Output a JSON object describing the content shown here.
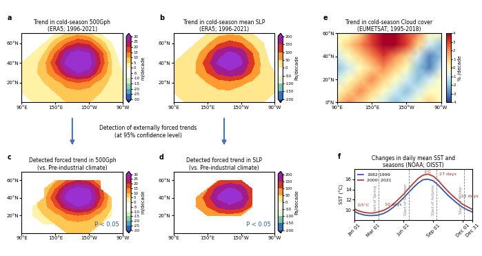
{
  "chart_data": [
    {
      "type": "contour",
      "label": "a",
      "title": "Trend in cold-season 500Gph\n(ERA5; 1996-2021)",
      "x": [
        90,
        110,
        130,
        150,
        170,
        190,
        210,
        230,
        250,
        270
      ],
      "y": [
        0,
        10,
        20,
        30,
        40,
        50,
        60,
        70
      ],
      "cells": [
        [
          0,
          0,
          2,
          3,
          5,
          5,
          5,
          3,
          2,
          0
        ],
        [
          0,
          2,
          3,
          5,
          8,
          8,
          8,
          5,
          3,
          0
        ],
        [
          0,
          2,
          5,
          8,
          12,
          15,
          12,
          8,
          3,
          0
        ],
        [
          0,
          3,
          8,
          15,
          25,
          30,
          28,
          15,
          5,
          0
        ],
        [
          0,
          2,
          8,
          20,
          32,
          35,
          33,
          20,
          5,
          -3
        ],
        [
          -3,
          0,
          5,
          15,
          28,
          33,
          30,
          18,
          3,
          -5
        ],
        [
          -5,
          -3,
          0,
          8,
          15,
          20,
          18,
          8,
          0,
          -5
        ],
        [
          -5,
          -5,
          -3,
          0,
          5,
          8,
          5,
          0,
          -3,
          -5
        ]
      ],
      "xlim": [
        90,
        270
      ],
      "ylim": [
        0,
        70
      ],
      "xticks": [
        {
          "value": 90,
          "label": "90°E"
        },
        {
          "value": 150,
          "label": "150°E"
        },
        {
          "value": 210,
          "label": "150°W"
        },
        {
          "value": 270,
          "label": "90°W"
        }
      ],
      "yticks": [
        {
          "value": 20,
          "label": "20°N"
        },
        {
          "value": 40,
          "label": "40°N"
        },
        {
          "value": 60,
          "label": "60°N"
        }
      ],
      "colorbar": {
        "label": "m/decade",
        "range": [
          -30,
          30
        ],
        "ticks": [
          -30,
          -25,
          -20,
          -15,
          -10,
          -5,
          0,
          5,
          10,
          15,
          20,
          25,
          30
        ]
      }
    },
    {
      "type": "contour",
      "label": "b",
      "title": "Trend in cold-season mean SLP\n(ERA5; 1996-2021)",
      "x": [
        90,
        110,
        130,
        150,
        170,
        190,
        210,
        230,
        250,
        270
      ],
      "y": [
        0,
        10,
        20,
        30,
        40,
        50,
        60,
        70
      ],
      "cells": [
        [
          0,
          0,
          10,
          20,
          30,
          30,
          20,
          10,
          0,
          0
        ],
        [
          0,
          10,
          20,
          30,
          40,
          40,
          30,
          20,
          10,
          0
        ],
        [
          0,
          10,
          30,
          50,
          70,
          80,
          60,
          40,
          10,
          0
        ],
        [
          0,
          20,
          50,
          100,
          160,
          190,
          170,
          90,
          30,
          0
        ],
        [
          0,
          10,
          50,
          130,
          210,
          230,
          210,
          120,
          20,
          -20
        ],
        [
          -20,
          0,
          30,
          90,
          180,
          210,
          190,
          100,
          10,
          -30
        ],
        [
          -30,
          -20,
          0,
          40,
          90,
          120,
          100,
          40,
          0,
          -30
        ],
        [
          -30,
          -30,
          -20,
          0,
          30,
          40,
          30,
          0,
          -20,
          -30
        ]
      ],
      "xlim": [
        90,
        270
      ],
      "ylim": [
        0,
        70
      ],
      "xticks": [
        {
          "value": 90,
          "label": "90°E"
        },
        {
          "value": 150,
          "label": "150°E"
        },
        {
          "value": 210,
          "label": "150°W"
        },
        {
          "value": 270,
          "label": "90°W"
        }
      ],
      "yticks": [
        {
          "value": 20,
          "label": "20°N"
        },
        {
          "value": 40,
          "label": "40°N"
        },
        {
          "value": 60,
          "label": "60°N"
        }
      ],
      "colorbar": {
        "label": "Pa/decade",
        "range": [
          -200,
          200
        ],
        "ticks": [
          -200,
          -150,
          -100,
          -50,
          0,
          50,
          100,
          150,
          200
        ]
      }
    },
    {
      "type": "heatmap",
      "label": "e",
      "title": "Trend in cold-season Cloud cover\n(EUMETSAT; 1995-2018)",
      "x": [
        90,
        110,
        130,
        150,
        170,
        190,
        210,
        230,
        250,
        270
      ],
      "y": [
        0,
        10,
        20,
        30,
        40,
        50,
        60
      ],
      "cells": [
        [
          1,
          2,
          1,
          0,
          -1,
          -2,
          -1,
          0,
          1,
          0
        ],
        [
          0,
          1,
          2,
          1,
          0,
          -1,
          -2,
          -1,
          0,
          0
        ],
        [
          -1,
          0,
          1,
          2,
          1,
          0,
          -1,
          -2,
          -1,
          0
        ],
        [
          -2,
          -1,
          0,
          1,
          2,
          1,
          0,
          -2,
          -3,
          -1
        ],
        [
          -1,
          0,
          1,
          2,
          3,
          2,
          1,
          -1,
          -3,
          -2
        ],
        [
          0,
          1,
          2,
          3,
          4,
          4,
          3,
          1,
          -1,
          -2
        ],
        [
          0,
          0,
          1,
          3,
          4,
          4,
          3,
          2,
          0,
          0
        ]
      ],
      "xlim": [
        90,
        270
      ],
      "ylim": [
        0,
        60
      ],
      "xticks": [
        {
          "value": 90,
          "label": "90°E"
        },
        {
          "value": 150,
          "label": "150°E"
        },
        {
          "value": 210,
          "label": "150°W"
        },
        {
          "value": 270,
          "label": "90°W"
        }
      ],
      "yticks": [
        {
          "value": 0,
          "label": "0°N"
        },
        {
          "value": 20,
          "label": "20°N"
        },
        {
          "value": 40,
          "label": "40°N"
        },
        {
          "value": 60,
          "label": "60°N"
        }
      ],
      "colorbar": {
        "label": "% /decade",
        "range": [
          -4,
          4
        ],
        "ticks": [
          -4,
          -3,
          -2,
          -1,
          0,
          1,
          2,
          3,
          4
        ]
      }
    },
    {
      "type": "contour",
      "label": "c",
      "title": "Detected forced trend in 500Gph\n(vs. Pre-industrial climate)",
      "annotation": "P < 0.05",
      "x": [
        90,
        110,
        130,
        150,
        170,
        190,
        210,
        230,
        250,
        270
      ],
      "y": [
        0,
        10,
        20,
        30,
        40,
        50,
        60,
        70
      ],
      "cells": [
        [
          null,
          null,
          null,
          null,
          5,
          5,
          5,
          null,
          null,
          null
        ],
        [
          null,
          null,
          3,
          5,
          8,
          8,
          8,
          5,
          null,
          null
        ],
        [
          null,
          2,
          5,
          8,
          12,
          15,
          12,
          8,
          3,
          null
        ],
        [
          null,
          3,
          8,
          15,
          25,
          30,
          28,
          15,
          5,
          null
        ],
        [
          null,
          null,
          8,
          20,
          32,
          35,
          33,
          20,
          5,
          null
        ],
        [
          null,
          null,
          5,
          15,
          28,
          33,
          30,
          18,
          null,
          null
        ],
        [
          null,
          null,
          null,
          8,
          15,
          20,
          18,
          8,
          null,
          null
        ],
        [
          null,
          null,
          null,
          null,
          null,
          null,
          null,
          null,
          null,
          null
        ]
      ],
      "xlim": [
        90,
        270
      ],
      "ylim": [
        0,
        70
      ],
      "xticks": [
        {
          "value": 90,
          "label": "90°E"
        },
        {
          "value": 150,
          "label": "150°E"
        },
        {
          "value": 210,
          "label": "150°W"
        },
        {
          "value": 270,
          "label": "90°W"
        }
      ],
      "yticks": [
        {
          "value": 20,
          "label": "20°N"
        },
        {
          "value": 40,
          "label": "40°N"
        },
        {
          "value": 60,
          "label": "60°N"
        }
      ],
      "colorbar": {
        "label": "m/decade",
        "range": [
          -30,
          30
        ],
        "ticks": [
          -30,
          -25,
          -20,
          -15,
          -10,
          -5,
          0,
          5,
          10,
          15,
          20,
          25,
          30
        ]
      }
    },
    {
      "type": "contour",
      "label": "d",
      "title": "Detected forced trend in SLP\n(vs. Pre-industrial climate)",
      "annotation": "P < 0.05",
      "x": [
        90,
        110,
        130,
        150,
        170,
        190,
        210,
        230,
        250,
        270
      ],
      "y": [
        0,
        10,
        20,
        30,
        40,
        50,
        60,
        70
      ],
      "cells": [
        [
          null,
          null,
          null,
          null,
          null,
          null,
          null,
          null,
          null,
          null
        ],
        [
          null,
          null,
          null,
          null,
          null,
          null,
          null,
          null,
          null,
          null
        ],
        [
          null,
          null,
          null,
          50,
          70,
          80,
          60,
          null,
          null,
          null
        ],
        [
          null,
          null,
          50,
          100,
          160,
          190,
          170,
          90,
          null,
          null
        ],
        [
          null,
          null,
          50,
          130,
          210,
          230,
          210,
          120,
          null,
          null
        ],
        [
          null,
          null,
          null,
          90,
          180,
          210,
          190,
          100,
          null,
          null
        ],
        [
          null,
          null,
          null,
          null,
          90,
          120,
          100,
          null,
          null,
          null
        ],
        [
          null,
          null,
          null,
          null,
          null,
          null,
          null,
          null,
          null,
          null
        ]
      ],
      "xlim": [
        90,
        270
      ],
      "ylim": [
        0,
        70
      ],
      "xticks": [
        {
          "value": 90,
          "label": "90°E"
        },
        {
          "value": 150,
          "label": "150°E"
        },
        {
          "value": 210,
          "label": "150°W"
        },
        {
          "value": 270,
          "label": "90°W"
        }
      ],
      "yticks": [
        {
          "value": 20,
          "label": "20°N"
        },
        {
          "value": 40,
          "label": "40°N"
        },
        {
          "value": 60,
          "label": "60°N"
        }
      ],
      "colorbar": {
        "label": "Pa/decade",
        "range": [
          -200,
          200
        ],
        "ticks": [
          -200,
          -150,
          -100,
          -50,
          0,
          50,
          100,
          150,
          200
        ]
      }
    },
    {
      "type": "line",
      "label": "f",
      "title": "Changes in daily mean SST and\nseasons (NOAA; OISST)",
      "ylabel": "SST (°C)",
      "x": [
        1,
        15,
        32,
        46,
        60,
        75,
        91,
        106,
        121,
        136,
        152,
        167,
        182,
        197,
        213,
        228,
        244,
        259,
        274,
        289,
        305,
        320,
        335,
        350,
        365
      ],
      "series": [
        {
          "name": "1982-1999",
          "color": "#2f55b8",
          "values": [
            9.7,
            9.3,
            9.0,
            8.9,
            8.9,
            9.0,
            9.3,
            9.8,
            10.5,
            11.3,
            12.3,
            13.3,
            14.3,
            15.2,
            15.9,
            16.0,
            15.7,
            14.9,
            13.9,
            12.9,
            12.0,
            11.2,
            10.5,
            10.0,
            9.6
          ]
        },
        {
          "name": "2000- 2021",
          "color": "#c0392b",
          "values": [
            10.2,
            9.8,
            9.5,
            9.4,
            9.4,
            9.6,
            9.9,
            10.4,
            11.1,
            12.0,
            13.0,
            14.1,
            15.1,
            16.1,
            16.8,
            17.0,
            16.6,
            15.8,
            14.7,
            13.7,
            12.7,
            11.9,
            11.1,
            10.6,
            10.1
          ]
        }
      ],
      "xlim": [
        1,
        365
      ],
      "ylim": [
        8,
        18
      ],
      "xticks": [
        {
          "value": 1,
          "label": "Jan 01"
        },
        {
          "value": 60,
          "label": "Mar 01"
        },
        {
          "value": 152,
          "label": "Jun 01"
        },
        {
          "value": 244,
          "label": "Sep 01"
        },
        {
          "value": 335,
          "label": "Dec 01"
        },
        {
          "value": 365,
          "label": "Dec 31"
        }
      ],
      "yticks": [
        10,
        12,
        14,
        16
      ],
      "legend": "upper left",
      "season_lines": [
        {
          "x": 75,
          "label": "Start of Spring"
        },
        {
          "x": 170,
          "label": "Start of Summer"
        },
        {
          "x": 255,
          "label": "Start of Autumn"
        },
        {
          "x": 340,
          "label": "Start of Winter"
        }
      ],
      "annotations": [
        {
          "text": "0.5°C",
          "x": 12,
          "y": 10.9
        },
        {
          "text": "10 days",
          "x": 95,
          "y": 11.0
        },
        {
          "text": "1°C",
          "x": 215,
          "y": 17.4
        },
        {
          "text": "27 days",
          "x": 262,
          "y": 17.0
        },
        {
          "text": "11 days",
          "x": 330,
          "y": 12.6
        }
      ]
    }
  ],
  "annotation": "Detection of externally forced trends\n(at 95% confidence level)"
}
